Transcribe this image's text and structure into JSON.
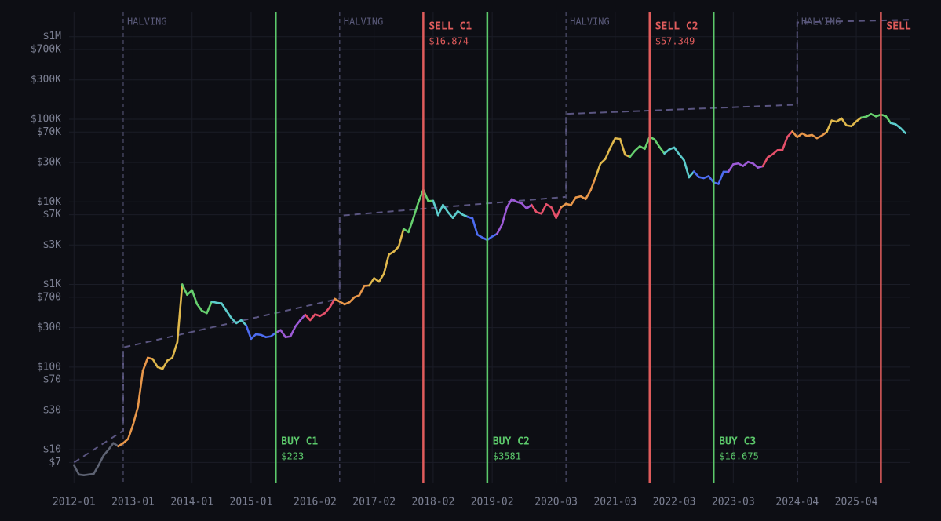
{
  "chart_data": {
    "type": "line",
    "log_scale": true,
    "grid": true,
    "xlim": [
      "2011-12",
      "2026-03"
    ],
    "ylim": [
      4,
      2000000
    ],
    "xticks": [
      "2012-01",
      "2013-01",
      "2014-01",
      "2015-01",
      "2016-02",
      "2017-02",
      "2018-02",
      "2019-02",
      "2020-03",
      "2021-03",
      "2022-03",
      "2023-03",
      "2024-04",
      "2025-04"
    ],
    "yticks": [
      {
        "value": 7,
        "label": "$7"
      },
      {
        "value": 10,
        "label": "$10"
      },
      {
        "value": 30,
        "label": "$30"
      },
      {
        "value": 70,
        "label": "$70"
      },
      {
        "value": 100,
        "label": "$100"
      },
      {
        "value": 300,
        "label": "$300"
      },
      {
        "value": 700,
        "label": "$700"
      },
      {
        "value": 1000,
        "label": "$1K"
      },
      {
        "value": 3000,
        "label": "$3K"
      },
      {
        "value": 7000,
        "label": "$7K"
      },
      {
        "value": 10000,
        "label": "$10K"
      },
      {
        "value": 30000,
        "label": "$30K"
      },
      {
        "value": 70000,
        "label": "$70K"
      },
      {
        "value": 100000,
        "label": "$100K"
      },
      {
        "value": 300000,
        "label": "$300K"
      },
      {
        "value": 700000,
        "label": "$700K"
      },
      {
        "value": 1000000,
        "label": "$1M"
      }
    ],
    "pre_halving_color": "#5d6272",
    "cycle_colors": [
      "#e8974a",
      "#e0b84c",
      "#66cf6e",
      "#5ccccc",
      "#4d6cf0",
      "#9c5ad6",
      "#e5506a"
    ],
    "series": [
      {
        "x": [
          "2012-01",
          "2012-02",
          "2012-03",
          "2012-04",
          "2012-05",
          "2012-06",
          "2012-07",
          "2012-08",
          "2012-09",
          "2012-10",
          "2012-11",
          "2012-12",
          "2013-01",
          "2013-02",
          "2013-03",
          "2013-04",
          "2013-05",
          "2013-06",
          "2013-07",
          "2013-08",
          "2013-09",
          "2013-10",
          "2013-11",
          "2013-12",
          "2014-01",
          "2014-02",
          "2014-03",
          "2014-04",
          "2014-05",
          "2014-06",
          "2014-07",
          "2014-08",
          "2014-09",
          "2014-10",
          "2014-11",
          "2014-12",
          "2015-01",
          "2015-02",
          "2015-03",
          "2015-04",
          "2015-05",
          "2015-06",
          "2015-07",
          "2015-08",
          "2015-09",
          "2015-10",
          "2015-11",
          "2015-12",
          "2016-01",
          "2016-02",
          "2016-03",
          "2016-04",
          "2016-05",
          "2016-06",
          "2016-07",
          "2016-08",
          "2016-09",
          "2016-10",
          "2016-11",
          "2016-12",
          "2017-01",
          "2017-02",
          "2017-03",
          "2017-04",
          "2017-05",
          "2017-06",
          "2017-07",
          "2017-08",
          "2017-09",
          "2017-10",
          "2017-11",
          "2017-12",
          "2018-01",
          "2018-02",
          "2018-03",
          "2018-04",
          "2018-05",
          "2018-06",
          "2018-07",
          "2018-08",
          "2018-09",
          "2018-10",
          "2018-11",
          "2018-12",
          "2019-01",
          "2019-02",
          "2019-03",
          "2019-04",
          "2019-05",
          "2019-06",
          "2019-07",
          "2019-08",
          "2019-09",
          "2019-10",
          "2019-11",
          "2019-12",
          "2020-01",
          "2020-02",
          "2020-03",
          "2020-04",
          "2020-05",
          "2020-06",
          "2020-07",
          "2020-08",
          "2020-09",
          "2020-10",
          "2020-11",
          "2020-12",
          "2021-01",
          "2021-02",
          "2021-03",
          "2021-04",
          "2021-05",
          "2021-06",
          "2021-07",
          "2021-08",
          "2021-09",
          "2021-10",
          "2021-11",
          "2021-12",
          "2022-01",
          "2022-02",
          "2022-03",
          "2022-04",
          "2022-05",
          "2022-06",
          "2022-07",
          "2022-08",
          "2022-09",
          "2022-10",
          "2022-11",
          "2022-12",
          "2023-01",
          "2023-02",
          "2023-03",
          "2023-04",
          "2023-05",
          "2023-06",
          "2023-07",
          "2023-08",
          "2023-09",
          "2023-10",
          "2023-11",
          "2023-12",
          "2024-01",
          "2024-02",
          "2024-03",
          "2024-04",
          "2024-05",
          "2024-06",
          "2024-07",
          "2024-08",
          "2024-09",
          "2024-10",
          "2024-11",
          "2024-12",
          "2025-01",
          "2025-02",
          "2025-03",
          "2025-04",
          "2025-05",
          "2025-06",
          "2025-07",
          "2025-08",
          "2025-09",
          "2025-10",
          "2025-11",
          "2025-12",
          "2026-01",
          "2026-02"
        ],
        "values": [
          6.5,
          5,
          4.9,
          5,
          5.1,
          6.5,
          8.5,
          10,
          12,
          11,
          12,
          13.5,
          20,
          33,
          90,
          130,
          125,
          100,
          95,
          120,
          130,
          200,
          1000,
          750,
          850,
          580,
          480,
          450,
          620,
          600,
          590,
          480,
          390,
          340,
          370,
          320,
          220,
          250,
          245,
          230,
          235,
          260,
          280,
          230,
          235,
          310,
          370,
          430,
          370,
          435,
          415,
          450,
          530,
          670,
          620,
          575,
          610,
          700,
          740,
          960,
          970,
          1190,
          1080,
          1350,
          2300,
          2500,
          2870,
          4700,
          4300,
          6400,
          9900,
          14000,
          10200,
          10300,
          6900,
          9200,
          7500,
          6400,
          7700,
          7000,
          6600,
          6300,
          4000,
          3700,
          3450,
          3800,
          4100,
          5300,
          8600,
          10800,
          10000,
          9600,
          8300,
          9200,
          7500,
          7200,
          9350,
          8600,
          6400,
          8600,
          9450,
          9150,
          11300,
          11700,
          10800,
          13800,
          19700,
          29000,
          33100,
          45200,
          58800,
          57700,
          37300,
          35000,
          41500,
          47100,
          43800,
          61300,
          57000,
          46300,
          38500,
          43200,
          45500,
          37700,
          31800,
          19800,
          23300,
          20000,
          19400,
          20500,
          17200,
          16500,
          23100,
          23100,
          28500,
          29200,
          27200,
          30500,
          29200,
          26000,
          27000,
          34500,
          37700,
          42300,
          42600,
          61200,
          71300,
          60700,
          67500,
          62700,
          64600,
          59000,
          63300,
          70200,
          96400,
          93400,
          102400,
          84400,
          82500,
          94200,
          104600,
          107100,
          115800,
          108200,
          114000,
          109500,
          90000,
          87000,
          78000,
          68000
        ]
      },
      {
        "color": "#5a5580",
        "dashed": true,
        "x": [
          "2012-01",
          "2012-11",
          "2012-11",
          "2016-07",
          "2016-07",
          "2020-05",
          "2020-05",
          "2024-04",
          "2024-04",
          "2026-03"
        ],
        "values": [
          7,
          17,
          173,
          675,
          6800,
          11500,
          116000,
          150000,
          1490000,
          1600000
        ]
      }
    ],
    "halvings": [
      {
        "date": "2012-11",
        "label": "HALVING"
      },
      {
        "date": "2016-07",
        "label": "HALVING"
      },
      {
        "date": "2020-05",
        "label": "HALVING"
      },
      {
        "date": "2024-04",
        "label": "HALVING"
      }
    ],
    "events": [
      {
        "kind": "buy",
        "date": "2015-06",
        "label": "BUY C1",
        "price": "$223",
        "color": "#5cc96b"
      },
      {
        "kind": "sell",
        "date": "2017-12",
        "label": "SELL C1",
        "price": "$16.874",
        "color": "#e05c5c"
      },
      {
        "kind": "buy",
        "date": "2019-01",
        "label": "BUY C2",
        "price": "$3581",
        "color": "#5cc96b"
      },
      {
        "kind": "sell",
        "date": "2021-10",
        "label": "SELL C2",
        "price": "$57.349",
        "color": "#e05c5c"
      },
      {
        "kind": "buy",
        "date": "2022-11",
        "label": "BUY C3",
        "price": "$16.675",
        "color": "#5cc96b"
      },
      {
        "kind": "sell",
        "date": "2025-09",
        "label": "SELL",
        "color": "#e05c5c"
      }
    ]
  }
}
